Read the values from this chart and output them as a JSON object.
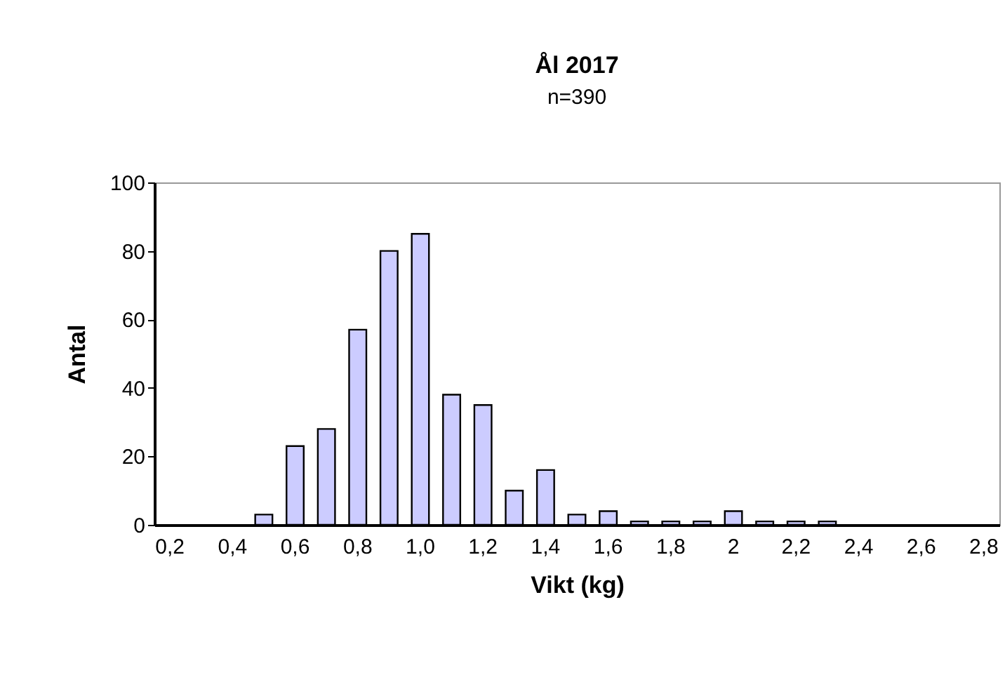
{
  "chart_data": {
    "type": "bar",
    "title": "Ål 2017",
    "subtitle": "n=390",
    "xlabel": "Vikt (kg)",
    "ylabel": "Antal",
    "categories": [
      "0,2",
      null,
      "0,4",
      null,
      "0,6",
      null,
      "0,8",
      null,
      "1,0",
      null,
      "1,2",
      null,
      "1,4",
      null,
      "1,6",
      null,
      "1,8",
      null,
      "2",
      null,
      "2,2",
      null,
      "2,4",
      null,
      "2,6",
      null,
      "2,8"
    ],
    "values": [
      0,
      0,
      0,
      3,
      23,
      28,
      57,
      80,
      85,
      38,
      35,
      10,
      16,
      3,
      4,
      1,
      1,
      1,
      4,
      1,
      1,
      1,
      0,
      0,
      0,
      0,
      0
    ],
    "color": "#ccccff",
    "ylim": [
      0,
      100
    ],
    "yticks": [
      0,
      20,
      40,
      60,
      80,
      100
    ]
  }
}
